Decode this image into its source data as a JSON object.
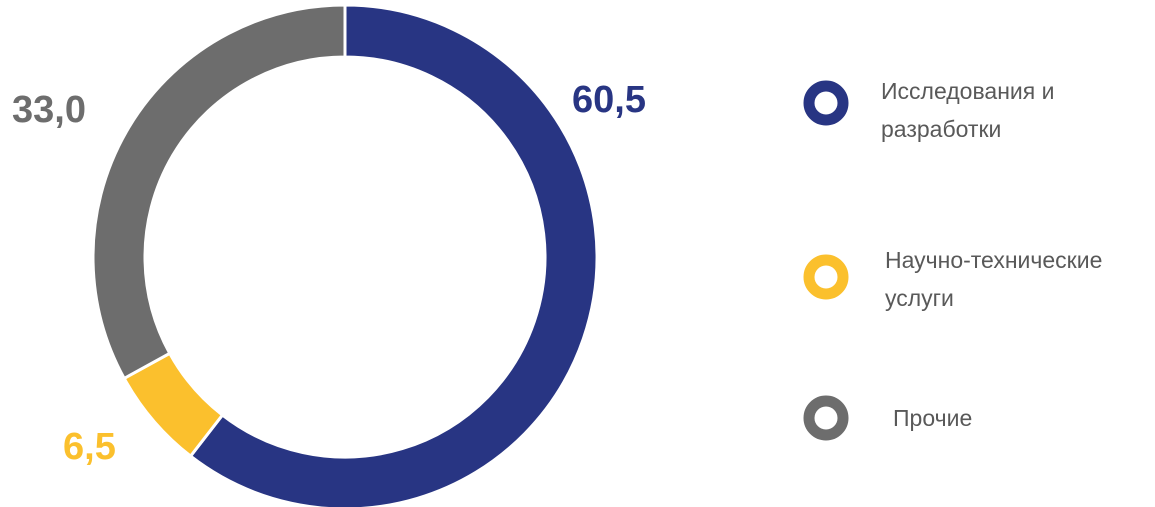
{
  "chart_data": {
    "type": "pie",
    "variant": "donut",
    "title": "",
    "categories": [
      "Исследования и разработки",
      "Научно-технические услуги",
      "Прочие"
    ],
    "values": [
      60.5,
      6.5,
      33.0
    ],
    "value_labels": [
      "60,5",
      "6,5",
      "33,0"
    ],
    "colors": [
      "#283583",
      "#FBC02D",
      "#6D6D6D"
    ],
    "legend": {
      "position": "right",
      "entries": [
        {
          "lines": [
            "Исследования и",
            "разработки"
          ],
          "color": "#283583"
        },
        {
          "lines": [
            "Научно-технические",
            "услуги"
          ],
          "color": "#FBC02D"
        },
        {
          "lines": [
            "Прочие"
          ],
          "color": "#6D6D6D"
        }
      ]
    }
  }
}
